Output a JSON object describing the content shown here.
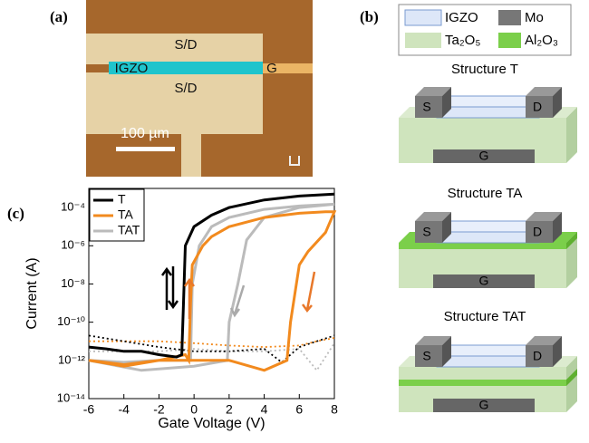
{
  "panel_a": {
    "label": "(a)",
    "sd_top": "S/D",
    "igzo": "IGZO",
    "gate": "G",
    "sd_bottom": "S/D",
    "scale": "100 µm"
  },
  "panel_b": {
    "label": "(b)",
    "legend": [
      "IGZO",
      "Mo",
      "Ta₂O₅",
      "Al₂O₃"
    ],
    "structures": [
      {
        "title": "Structure T",
        "source": "S",
        "drain": "D",
        "gate": "G"
      },
      {
        "title": "Structure TA",
        "source": "S",
        "drain": "D",
        "gate": "G"
      },
      {
        "title": "Structure TAT",
        "source": "S",
        "drain": "D",
        "gate": "G"
      }
    ]
  },
  "panel_c": {
    "label": "(c)"
  },
  "chart_data": {
    "type": "line",
    "x_label": "Gate Voltage (V)",
    "y_label": "Current (A)",
    "xlim": [
      -6,
      8
    ],
    "xticks": [
      -6,
      -4,
      -2,
      0,
      2,
      4,
      6,
      8
    ],
    "ylim": [
      1e-14,
      0.001
    ],
    "yscale": "log",
    "yticks": [
      {
        "value": 0.0001,
        "label": "10⁻⁴"
      },
      {
        "value": 1e-06,
        "label": "10⁻⁶"
      },
      {
        "value": 1e-08,
        "label": "10⁻⁸"
      },
      {
        "value": 1e-10,
        "label": "10⁻¹⁰"
      },
      {
        "value": 1e-12,
        "label": "10⁻¹²"
      },
      {
        "value": 1e-14,
        "label": "10⁻¹⁴"
      }
    ],
    "legend": "upper left",
    "series": [
      {
        "name": "T",
        "color": "#000000",
        "style": "solid",
        "x": [
          -6,
          -5,
          -4,
          -3,
          -2,
          -1,
          -0.7,
          -0.6,
          -0.5,
          0,
          1,
          2,
          4,
          6,
          8
        ],
        "values": [
          5e-12,
          4e-12,
          3e-12,
          3e-12,
          2e-12,
          1.5e-12,
          2e-12,
          1e-09,
          1e-06,
          1e-05,
          4e-05,
          0.0001,
          0.00025,
          0.0004,
          0.0005
        ]
      },
      {
        "name": "TA",
        "color": "#f28a1e",
        "style": "solid",
        "x": [
          -6,
          -4,
          -2,
          -0.5,
          -0.3,
          -0.2,
          -0.1,
          0.5,
          1,
          2,
          4,
          6,
          7.5,
          8,
          7.5,
          6.5,
          6,
          5.5,
          5.3,
          4,
          2,
          0,
          -2,
          -4,
          -6
        ],
        "values": [
          1e-12,
          5e-13,
          1e-12,
          2e-12,
          1e-12,
          1e-09,
          1e-07,
          1e-06,
          3e-06,
          1e-05,
          3e-05,
          5e-05,
          6e-05,
          6e-05,
          5e-06,
          5e-07,
          1e-07,
          1e-10,
          1e-12,
          3e-13,
          1e-12,
          1e-12,
          1e-12,
          6e-13,
          1e-12
        ]
      },
      {
        "name": "TAT",
        "color": "#bbbbbb",
        "style": "solid",
        "x": [
          -6,
          -4,
          -2,
          -0.2,
          -0.1,
          0.3,
          1,
          2,
          4,
          6,
          8,
          6,
          4,
          3,
          2.5,
          2,
          1.9,
          0,
          -3,
          -6
        ],
        "values": [
          1e-12,
          8e-13,
          1e-12,
          1e-12,
          1e-08,
          1e-06,
          1e-05,
          3e-05,
          8e-05,
          0.00012,
          0.00015,
          0.0001,
          3e-05,
          2e-06,
          1e-08,
          1e-10,
          1e-12,
          5e-13,
          3e-13,
          1e-12
        ]
      },
      {
        "color": "#000000",
        "style": "dotted",
        "x": [
          -6,
          -4,
          -2,
          0,
          2,
          4,
          5,
          6,
          7,
          8
        ],
        "values": [
          2e-11,
          1e-11,
          5e-12,
          3e-12,
          3e-12,
          4e-12,
          8e-13,
          5e-12,
          1e-11,
          2e-11
        ]
      },
      {
        "color": "#f28a1e",
        "style": "dotted",
        "x": [
          -6,
          -4,
          -2,
          0,
          2,
          4,
          6,
          7,
          8
        ],
        "values": [
          1e-11,
          1e-11,
          1e-11,
          8e-12,
          6e-12,
          5e-12,
          6e-12,
          1e-11,
          1.5e-11
        ]
      },
      {
        "color": "#bbbbbb",
        "style": "dotted",
        "x": [
          -6,
          -4,
          -2,
          0,
          2,
          4,
          6,
          7,
          8
        ],
        "values": [
          3e-12,
          3e-12,
          3e-12,
          4e-12,
          3e-12,
          3e-12,
          4e-12,
          3e-13,
          8e-12
        ]
      }
    ]
  }
}
